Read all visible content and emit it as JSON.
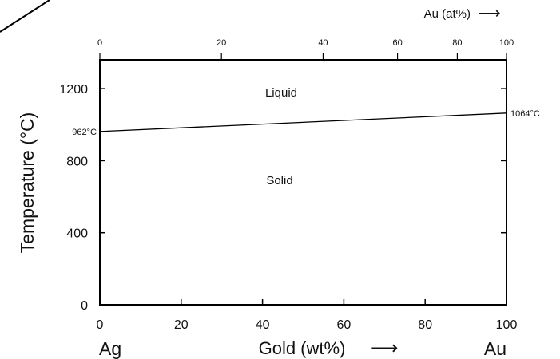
{
  "chart_data": {
    "type": "line",
    "ylabel": "Temperature (°C)",
    "xlabel_bottom": "Gold (wt%)",
    "xlabel_bottom_arrow": "⟶",
    "xlabel_top": "Au (at%)",
    "xlabel_top_arrow": "⟶",
    "left_end_label": "Ag",
    "right_end_label": "Au",
    "xlim": [
      0,
      100
    ],
    "ylim": [
      0,
      1360
    ],
    "x_ticks_bottom": [
      0,
      20,
      40,
      60,
      80,
      100
    ],
    "x_tick_labels_bottom": [
      "0",
      "20",
      "40",
      "60",
      "80",
      "100"
    ],
    "x_ticks_top_wt": [
      0,
      29.9,
      54.9,
      73.2,
      87.9,
      100
    ],
    "x_tick_labels_top": [
      "0",
      "20",
      "40",
      "60",
      "80",
      "100"
    ],
    "y_ticks": [
      0,
      400,
      800,
      1200
    ],
    "y_tick_labels": [
      "0",
      "400",
      "800",
      "1200"
    ],
    "series": [
      {
        "x": [
          0,
          100
        ],
        "values": [
          962,
          1064
        ]
      }
    ],
    "annotations": {
      "left_point": "962°C",
      "right_point": "1064°C",
      "region_upper": "Liquid",
      "region_lower": "Solid"
    },
    "grid": false,
    "legend": "none"
  }
}
